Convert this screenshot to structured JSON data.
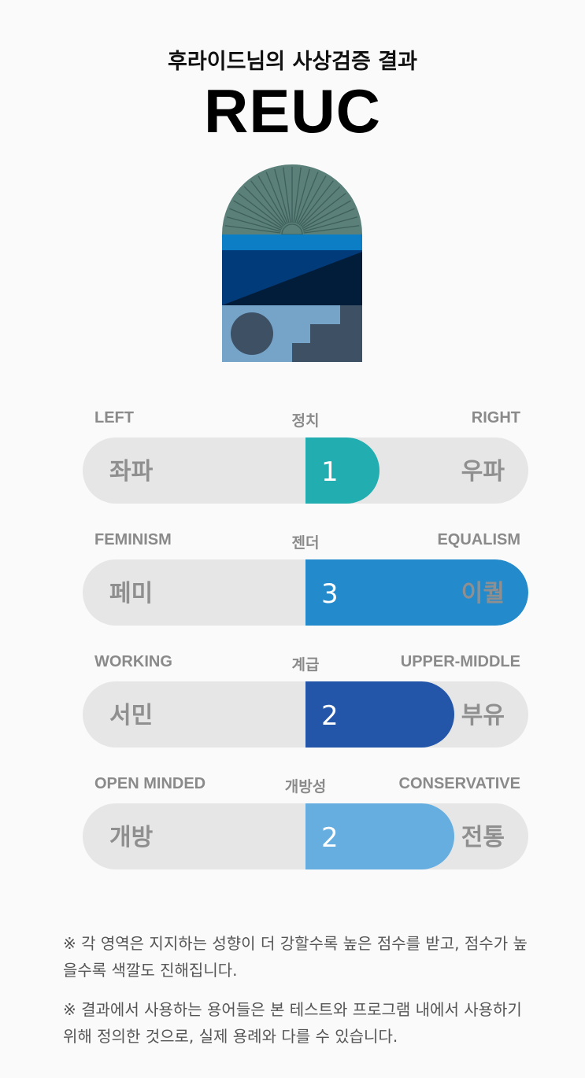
{
  "header": {
    "subtitle": "후라이드님의 사상검증 결과",
    "result_code": "REUC"
  },
  "emblem": {
    "icon": "sunrise-sea-stairs-emblem",
    "colors": {
      "arch": "#5a8079",
      "band": "#0c7ec6",
      "navy": "#023b7a",
      "dark": "#021d3a",
      "ground": "#76a3c8",
      "shapes": "#3d5064"
    }
  },
  "scales": [
    {
      "category": "정치",
      "left_en": "LEFT",
      "right_en": "RIGHT",
      "left_ko": "좌파",
      "right_ko": "우파",
      "score": "1",
      "max": 3,
      "color": "#22adb0"
    },
    {
      "category": "젠더",
      "left_en": "FEMINISM",
      "right_en": "EQUALISM",
      "left_ko": "페미",
      "right_ko": "이퀄",
      "score": "3",
      "max": 3,
      "color": "#238acb"
    },
    {
      "category": "계급",
      "left_en": "WORKING",
      "right_en": "UPPER-MIDDLE",
      "left_ko": "서민",
      "right_ko": "부유",
      "score": "2",
      "max": 3,
      "color": "#2356a9"
    },
    {
      "category": "개방성",
      "left_en": "OPEN MINDED",
      "right_en": "CONSERVATIVE",
      "left_ko": "개방",
      "right_ko": "전통",
      "score": "2",
      "max": 3,
      "color": "#66ade0"
    }
  ],
  "notes": [
    "※ 각 영역은 지지하는 성향이 더 강할수록 높은 점수를 받고, 점수가 높을수록 색깔도 진해집니다.",
    "※ 결과에서 사용하는 용어들은 본 테스트와 프로그램 내에서 사용하기 위해 정의한 것으로, 실제 용례와 다를 수 있습니다."
  ]
}
